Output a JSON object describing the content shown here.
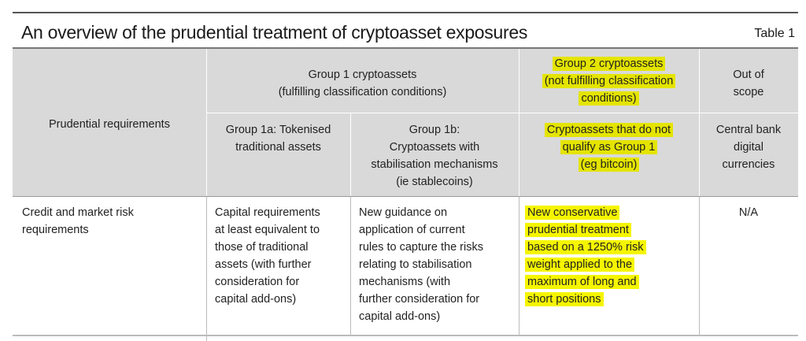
{
  "title": "An overview of the prudential treatment of cryptoasset exposures",
  "table_label": "Table 1",
  "header": {
    "prudential_requirements": "Prudential requirements",
    "group1": "Group 1 cryptoassets\n(fulfilling classification conditions)",
    "group2": "Group 2 cryptoassets\n(not fulfilling classification\nconditions)",
    "out_of_scope": "Out of\nscope",
    "group1a": "Group 1a: Tokenised\ntraditional assets",
    "group1b": "Group 1b:\nCryptoassets with\nstabilisation mechanisms\n(ie stablecoins)",
    "group2_sub": "Cryptoassets that do not\nqualify as Group 1\n(eg bitcoin)",
    "cbdc": "Central bank\ndigital\ncurrencies"
  },
  "rows": [
    {
      "requirement": "Credit and market risk\nrequirements",
      "group1a": "Capital requirements\nat least equivalent to\nthose of traditional\nassets (with further\nconsideration for\ncapital add-ons)",
      "group1b": "New guidance on\napplication of current\nrules to capture the risks\nrelating to stabilisation\nmechanisms (with\nfurther consideration for\ncapital add-ons)",
      "group2": "New conservative\nprudential treatment\nbased on a 1250% risk\nweight applied to the\nmaximum of long and\nshort positions",
      "out_of_scope": "N/A"
    }
  ],
  "highlight_color": "#e4e400"
}
